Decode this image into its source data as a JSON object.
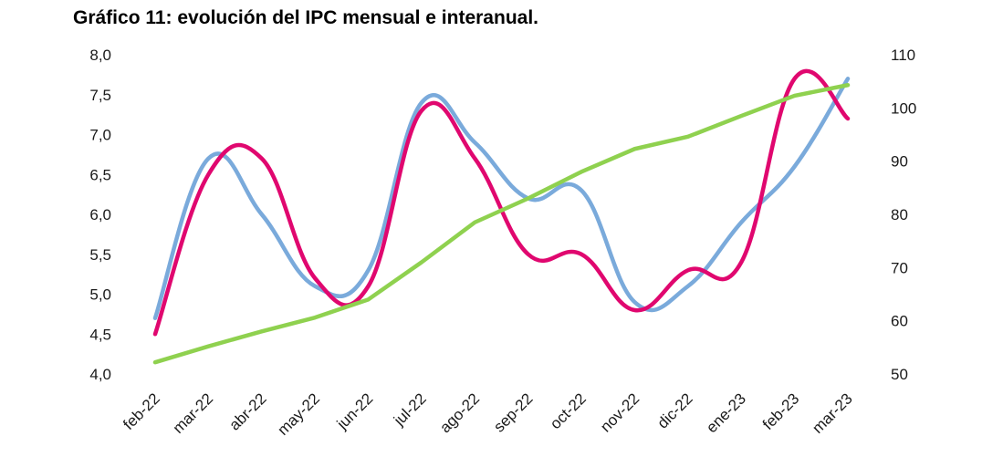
{
  "title": "Gráfico 11: evolución del IPC mensual e interanual.",
  "chart_data": {
    "type": "line",
    "title": "Gráfico 11: evolución del IPC mensual e interanual.",
    "categories": [
      "feb-22",
      "mar-22",
      "abr-22",
      "may-22",
      "jun-22",
      "jul-22",
      "ago-22",
      "sep-22",
      "oct-22",
      "nov-22",
      "dic-22",
      "ene-23",
      "feb-23",
      "mar-23"
    ],
    "y_left": {
      "range": [
        4.0,
        8.0
      ],
      "ticks": [
        "4,0",
        "4,5",
        "5,0",
        "5,5",
        "6,0",
        "6,5",
        "7,0",
        "7,5",
        "8,0"
      ],
      "tick_values": [
        4.0,
        4.5,
        5.0,
        5.5,
        6.0,
        6.5,
        7.0,
        7.5,
        8.0
      ]
    },
    "y_right": {
      "range": [
        50,
        110
      ],
      "ticks": [
        "50",
        "60",
        "70",
        "80",
        "90",
        "100",
        "110"
      ],
      "tick_values": [
        50,
        60,
        70,
        80,
        90,
        100,
        110
      ]
    },
    "grid": false,
    "legend": "none",
    "series": [
      {
        "axis": "left",
        "color": "#7aaadb",
        "values": [
          4.7,
          6.7,
          6.0,
          5.1,
          5.3,
          7.4,
          6.9,
          6.2,
          6.3,
          4.9,
          5.1,
          5.9,
          6.6,
          7.7
        ]
      },
      {
        "axis": "left",
        "color": "#e0076f",
        "values": [
          4.5,
          6.5,
          6.7,
          5.2,
          5.1,
          7.3,
          6.7,
          5.5,
          5.5,
          4.8,
          5.3,
          5.4,
          7.7,
          7.2
        ]
      },
      {
        "axis": "right",
        "color": "#8fd14f",
        "values": [
          52.2,
          55.2,
          58.0,
          60.6,
          64.0,
          71.0,
          78.5,
          83.0,
          88.0,
          92.3,
          94.6,
          98.5,
          102.3,
          104.3
        ]
      }
    ]
  }
}
